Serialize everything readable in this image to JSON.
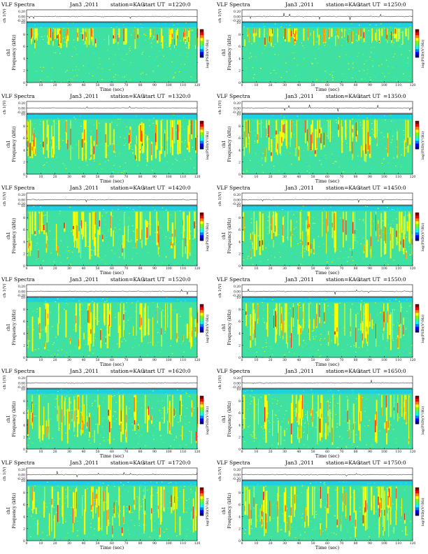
{
  "page": {
    "title_prefix": "VLF Spectra",
    "date": "Jan3 ,2011",
    "station": "station=KAG",
    "start_label": "start  UT",
    "waveform_ylabel": "ch 1(V)",
    "waveform_ticks": [
      "0.20",
      "0.00",
      "-0.20"
    ],
    "spectrogram_ylabel_line1": "ch1",
    "spectrogram_ylabel_line2": "Frequency  (kHz)",
    "colorbar_label": "log(PSD)(V²/Hz)",
    "colorbar_colors": [
      "#00007f",
      "#0000ff",
      "#0080ff",
      "#00ffff",
      "#40ff80",
      "#80ff00",
      "#ffff00",
      "#ff8000",
      "#ff0000",
      "#800000"
    ],
    "accent": {
      "background": "#40e0a0",
      "hot": "#ff2000"
    }
  },
  "chart_data": [
    {
      "type": "heatmap",
      "title": "VLF Spectra",
      "start_ut": "=1220:0",
      "xlabel": "Time  (sec)",
      "ylabel": "Frequency  (kHz)",
      "x_ticks": [
        0,
        10,
        20,
        30,
        40,
        50,
        60,
        70,
        80,
        90,
        100,
        110,
        120
      ],
      "y_ticks": [
        0,
        2,
        4,
        6,
        8,
        10
      ],
      "xlim": [
        0,
        120
      ],
      "ylim": [
        0,
        10
      ],
      "dominant_band_khz": [
        5.5,
        9
      ]
    },
    {
      "type": "heatmap",
      "title": "VLF Spectra",
      "start_ut": "=1250:0",
      "xlabel": "Time  (sec)",
      "ylabel": "Frequency  (kHz)",
      "x_ticks": [
        0,
        10,
        20,
        30,
        40,
        50,
        60,
        70,
        80,
        90,
        100,
        110,
        120
      ],
      "y_ticks": [
        0,
        2,
        4,
        6,
        8,
        10
      ],
      "xlim": [
        0,
        120
      ],
      "ylim": [
        0,
        10
      ],
      "dominant_band_khz": [
        6,
        9
      ]
    },
    {
      "type": "heatmap",
      "title": "VLF Spectra",
      "start_ut": "=1320:0",
      "xlabel": "Time  (sec)",
      "ylabel": "Frequency  (kHz)",
      "x_ticks": [
        0,
        10,
        20,
        30,
        40,
        50,
        60,
        70,
        80,
        90,
        100,
        110,
        120
      ],
      "y_ticks": [
        0,
        2,
        4,
        6,
        8,
        10
      ],
      "xlim": [
        0,
        120
      ],
      "ylim": [
        0,
        10
      ],
      "dominant_band_khz": [
        2,
        9
      ]
    },
    {
      "type": "heatmap",
      "title": "VLF Spectra",
      "start_ut": "=1350:0",
      "xlabel": "Time  (sec)",
      "ylabel": "Frequency  (kHz)",
      "x_ticks": [
        0,
        10,
        20,
        30,
        40,
        50,
        60,
        70,
        80,
        90,
        100,
        110,
        120
      ],
      "y_ticks": [
        0,
        2,
        4,
        6,
        8,
        10
      ],
      "xlim": [
        0,
        120
      ],
      "ylim": [
        0,
        10
      ],
      "dominant_band_khz": [
        2,
        9
      ]
    },
    {
      "type": "heatmap",
      "title": "VLF Spectra",
      "start_ut": "=1420:0",
      "xlabel": "Time  (sec)",
      "ylabel": "Frequency  (kHz)",
      "x_ticks": [
        0,
        10,
        20,
        30,
        40,
        50,
        60,
        70,
        80,
        90,
        100,
        110,
        120
      ],
      "y_ticks": [
        0,
        2,
        4,
        6,
        8,
        10
      ],
      "xlim": [
        0,
        120
      ],
      "ylim": [
        0,
        10
      ],
      "dominant_band_khz": [
        1,
        9
      ]
    },
    {
      "type": "heatmap",
      "title": "VLF Spectra",
      "start_ut": "=1450:0",
      "xlabel": "Time  (sec)",
      "ylabel": "Frequency  (kHz)",
      "x_ticks": [
        0,
        10,
        20,
        30,
        40,
        50,
        60,
        70,
        80,
        90,
        100,
        110,
        120
      ],
      "y_ticks": [
        0,
        2,
        4,
        6,
        8,
        10
      ],
      "xlim": [
        0,
        120
      ],
      "ylim": [
        0,
        10
      ],
      "dominant_band_khz": [
        1,
        9
      ]
    },
    {
      "type": "heatmap",
      "title": "VLF Spectra",
      "start_ut": "=1520:0",
      "xlabel": "Time  (sec)",
      "ylabel": "Frequency  (kHz)",
      "x_ticks": [
        0,
        10,
        20,
        30,
        40,
        50,
        60,
        70,
        80,
        90,
        100,
        110,
        120
      ],
      "y_ticks": [
        0,
        2,
        4,
        6,
        8,
        10
      ],
      "xlim": [
        0,
        120
      ],
      "ylim": [
        0,
        10
      ],
      "dominant_band_khz": [
        1,
        9
      ]
    },
    {
      "type": "heatmap",
      "title": "VLF Spectra",
      "start_ut": "=1550:0",
      "xlabel": "Time  (sec)",
      "ylabel": "Frequency  (kHz)",
      "x_ticks": [
        0,
        10,
        20,
        30,
        40,
        50,
        60,
        70,
        80,
        90,
        100,
        110,
        120
      ],
      "y_ticks": [
        0,
        2,
        4,
        6,
        8,
        10
      ],
      "xlim": [
        0,
        120
      ],
      "ylim": [
        0,
        10
      ],
      "dominant_band_khz": [
        1,
        9
      ]
    },
    {
      "type": "heatmap",
      "title": "VLF Spectra",
      "start_ut": "=1620:0",
      "xlabel": "Time  (sec)",
      "ylabel": "Frequency  (kHz)",
      "x_ticks": [
        0,
        10,
        20,
        30,
        40,
        50,
        60,
        70,
        80,
        90,
        100,
        110,
        120
      ],
      "y_ticks": [
        0,
        2,
        4,
        6,
        8,
        10
      ],
      "xlim": [
        0,
        120
      ],
      "ylim": [
        0,
        10
      ],
      "dominant_band_khz": [
        0.5,
        9
      ]
    },
    {
      "type": "heatmap",
      "title": "VLF Spectra",
      "start_ut": "=1650:0",
      "xlabel": "Time  (sec)",
      "ylabel": "Frequency  (kHz)",
      "x_ticks": [
        0,
        10,
        20,
        30,
        40,
        50,
        60,
        70,
        80,
        90,
        100,
        110,
        120
      ],
      "y_ticks": [
        0,
        2,
        4,
        6,
        8,
        10
      ],
      "xlim": [
        0,
        120
      ],
      "ylim": [
        0,
        10
      ],
      "dominant_band_khz": [
        0.5,
        9
      ]
    },
    {
      "type": "heatmap",
      "title": "VLF Spectra",
      "start_ut": "=1720:0",
      "xlabel": "Time  (sec)",
      "ylabel": "Frequency  (kHz)",
      "x_ticks": [
        0,
        10,
        20,
        30,
        40,
        50,
        60,
        70,
        80,
        90,
        100,
        110,
        120
      ],
      "y_ticks": [
        0,
        2,
        4,
        6,
        8,
        10
      ],
      "xlim": [
        0,
        120
      ],
      "ylim": [
        0,
        10
      ],
      "dominant_band_khz": [
        0.5,
        9
      ]
    },
    {
      "type": "heatmap",
      "title": "VLF Spectra",
      "start_ut": "=1750:0",
      "xlabel": "Time  (sec)",
      "ylabel": "Frequency  (kHz)",
      "x_ticks": [
        0,
        10,
        20,
        30,
        40,
        50,
        60,
        70,
        80,
        90,
        100,
        110,
        120
      ],
      "y_ticks": [
        0,
        2,
        4,
        6,
        8,
        10
      ],
      "xlim": [
        0,
        120
      ],
      "ylim": [
        0,
        10
      ],
      "dominant_band_khz": [
        0.5,
        9
      ]
    }
  ]
}
